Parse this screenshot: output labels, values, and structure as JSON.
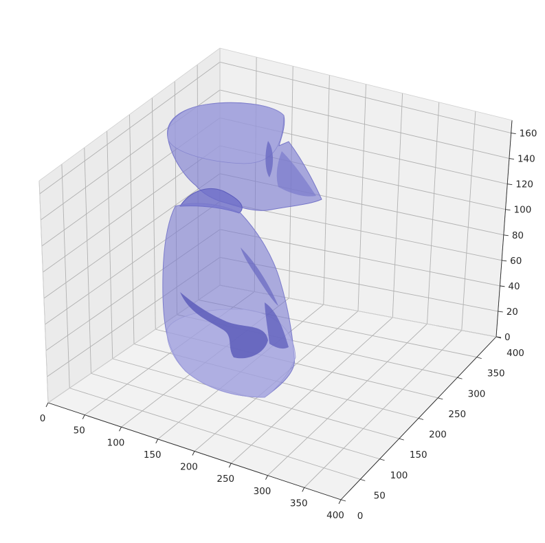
{
  "chart_data": {
    "type": "surface3d",
    "title": "",
    "xlabel": "",
    "ylabel": "",
    "zlabel": "",
    "xlim": [
      0,
      400
    ],
    "ylim": [
      0,
      400
    ],
    "zlim": [
      0,
      170
    ],
    "x_ticks": [
      "0",
      "50",
      "100",
      "150",
      "200",
      "250",
      "300",
      "350",
      "400"
    ],
    "y_ticks": [
      "0",
      "50",
      "100",
      "150",
      "200",
      "250",
      "300",
      "350",
      "400"
    ],
    "z_ticks": [
      "0",
      "20",
      "40",
      "60",
      "80",
      "100",
      "120",
      "140",
      "160"
    ],
    "grid": true,
    "surface_color": "#7b7bd0",
    "pane_color": "#f2f2f2"
  }
}
